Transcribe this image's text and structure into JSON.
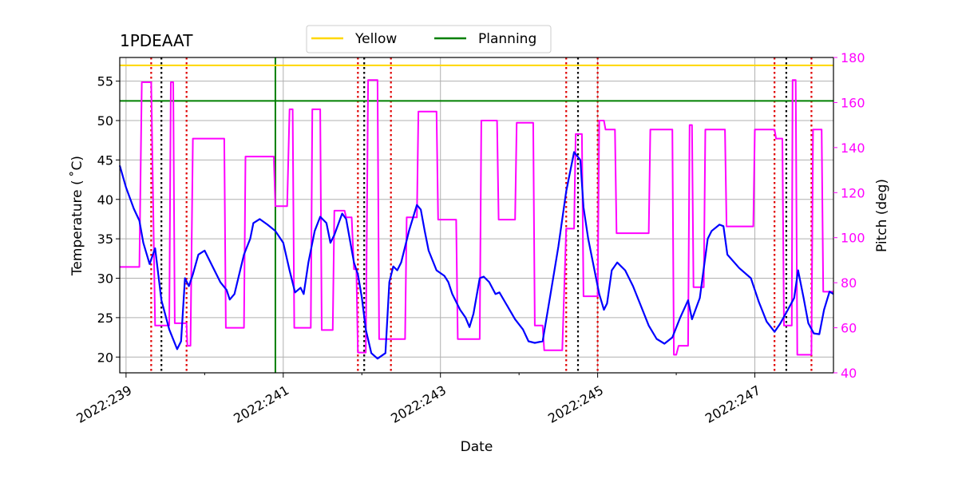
{
  "chart_data": {
    "type": "line",
    "title": "1PDEAAT",
    "xlabel": "Date",
    "ylabel": "Temperature ($^\\circ$C)",
    "ylabel_display": "Temperature ( ˚C)",
    "y2label": "Pitch (deg)",
    "xlim": [
      238.92,
      248.0
    ],
    "ylim": [
      18,
      58
    ],
    "y2lim": [
      40,
      180
    ],
    "x_ticks": [
      {
        "value": 239,
        "label": "2022:239"
      },
      {
        "value": 241,
        "label": "2022:241"
      },
      {
        "value": 243,
        "label": "2022:243"
      },
      {
        "value": 245,
        "label": "2022:245"
      },
      {
        "value": 247,
        "label": "2022:247"
      }
    ],
    "x_minor_ticks": [
      240,
      242,
      244,
      246
    ],
    "y_ticks": [
      20,
      25,
      30,
      35,
      40,
      45,
      50,
      55
    ],
    "y2_ticks": [
      40,
      60,
      80,
      100,
      120,
      140,
      160,
      180
    ],
    "legend": {
      "placement": "top-center",
      "entries": [
        {
          "label": "Yellow",
          "color": "#ffd700"
        },
        {
          "label": "Planning",
          "color": "#008000"
        }
      ]
    },
    "limits": [
      {
        "name": "Yellow",
        "value": 57,
        "color": "#ffd700"
      },
      {
        "name": "Planning",
        "value": 52.5,
        "color": "#008000"
      }
    ],
    "planning_vertical_x": 240.9,
    "comm_black_dotted_x": [
      239.45,
      242.03,
      244.75,
      247.4
    ],
    "red_dotted_x": [
      239.32,
      239.77,
      241.95,
      242.37,
      244.6,
      245.0,
      247.25,
      247.72
    ],
    "series": [
      {
        "name": "1PDEAAT",
        "axis": "left",
        "color": "#0000ff",
        "points": [
          [
            238.92,
            44.3
          ],
          [
            239.0,
            41.5
          ],
          [
            239.1,
            38.8
          ],
          [
            239.17,
            37.3
          ],
          [
            239.22,
            34.5
          ],
          [
            239.3,
            31.8
          ],
          [
            239.37,
            33.8
          ],
          [
            239.45,
            27.2
          ],
          [
            239.55,
            23.5
          ],
          [
            239.65,
            21.0
          ],
          [
            239.7,
            22.0
          ],
          [
            239.75,
            30.0
          ],
          [
            239.8,
            29.0
          ],
          [
            239.85,
            30.5
          ],
          [
            239.92,
            33.0
          ],
          [
            240.0,
            33.5
          ],
          [
            240.1,
            31.5
          ],
          [
            240.2,
            29.5
          ],
          [
            240.28,
            28.5
          ],
          [
            240.32,
            27.3
          ],
          [
            240.38,
            28.0
          ],
          [
            240.5,
            33.0
          ],
          [
            240.58,
            35.0
          ],
          [
            240.62,
            37.0
          ],
          [
            240.7,
            37.5
          ],
          [
            240.8,
            36.8
          ],
          [
            240.9,
            36.0
          ],
          [
            241.0,
            34.5
          ],
          [
            241.08,
            31.0
          ],
          [
            241.15,
            28.2
          ],
          [
            241.22,
            28.8
          ],
          [
            241.26,
            28.0
          ],
          [
            241.32,
            32.0
          ],
          [
            241.4,
            36.0
          ],
          [
            241.47,
            37.8
          ],
          [
            241.55,
            37.0
          ],
          [
            241.6,
            34.5
          ],
          [
            241.65,
            35.5
          ],
          [
            241.75,
            38.2
          ],
          [
            241.8,
            37.5
          ],
          [
            241.9,
            32.0
          ],
          [
            241.95,
            30.5
          ],
          [
            242.0,
            27.5
          ],
          [
            242.05,
            23.5
          ],
          [
            242.12,
            20.5
          ],
          [
            242.2,
            19.8
          ],
          [
            242.3,
            20.5
          ],
          [
            242.35,
            29.5
          ],
          [
            242.4,
            31.5
          ],
          [
            242.45,
            31.0
          ],
          [
            242.5,
            32.0
          ],
          [
            242.6,
            36.0
          ],
          [
            242.7,
            39.3
          ],
          [
            242.75,
            38.7
          ],
          [
            242.8,
            36.0
          ],
          [
            242.85,
            33.5
          ],
          [
            242.95,
            31.0
          ],
          [
            243.05,
            30.3
          ],
          [
            243.1,
            29.5
          ],
          [
            243.15,
            28.0
          ],
          [
            243.25,
            26.0
          ],
          [
            243.32,
            25.0
          ],
          [
            243.37,
            23.8
          ],
          [
            243.42,
            25.5
          ],
          [
            243.5,
            30.0
          ],
          [
            243.55,
            30.2
          ],
          [
            243.62,
            29.5
          ],
          [
            243.7,
            28.0
          ],
          [
            243.75,
            28.2
          ],
          [
            243.85,
            26.5
          ],
          [
            243.95,
            24.8
          ],
          [
            244.05,
            23.5
          ],
          [
            244.12,
            22.0
          ],
          [
            244.2,
            21.8
          ],
          [
            244.3,
            22.0
          ],
          [
            244.4,
            28.0
          ],
          [
            244.5,
            34.0
          ],
          [
            244.6,
            41.0
          ],
          [
            244.7,
            46.0
          ],
          [
            244.78,
            45.0
          ],
          [
            244.82,
            39.0
          ],
          [
            244.88,
            35.0
          ],
          [
            244.95,
            31.5
          ],
          [
            245.02,
            28.0
          ],
          [
            245.08,
            26.0
          ],
          [
            245.12,
            26.8
          ],
          [
            245.18,
            31.0
          ],
          [
            245.25,
            32.0
          ],
          [
            245.35,
            31.0
          ],
          [
            245.45,
            29.0
          ],
          [
            245.55,
            26.5
          ],
          [
            245.65,
            24.0
          ],
          [
            245.75,
            22.3
          ],
          [
            245.85,
            21.7
          ],
          [
            245.95,
            22.5
          ],
          [
            246.05,
            25.0
          ],
          [
            246.15,
            27.2
          ],
          [
            246.2,
            24.8
          ],
          [
            246.3,
            27.5
          ],
          [
            246.4,
            35.0
          ],
          [
            246.45,
            36.0
          ],
          [
            246.55,
            36.8
          ],
          [
            246.6,
            36.6
          ],
          [
            246.65,
            33.0
          ],
          [
            246.8,
            31.3
          ],
          [
            246.95,
            30.0
          ],
          [
            247.05,
            27.0
          ],
          [
            247.15,
            24.5
          ],
          [
            247.25,
            23.2
          ],
          [
            247.32,
            24.2
          ],
          [
            247.42,
            26.0
          ],
          [
            247.5,
            27.5
          ],
          [
            247.55,
            31.0
          ],
          [
            247.62,
            27.5
          ],
          [
            247.68,
            24.3
          ],
          [
            247.75,
            23.0
          ],
          [
            247.82,
            22.9
          ],
          [
            247.88,
            26.0
          ],
          [
            247.95,
            28.3
          ],
          [
            248.0,
            28.0
          ]
        ]
      },
      {
        "name": "Pitch",
        "axis": "right",
        "color": "#ff00ff",
        "points": [
          [
            238.92,
            87
          ],
          [
            239.17,
            87
          ],
          [
            239.2,
            169
          ],
          [
            239.32,
            169
          ],
          [
            239.37,
            61
          ],
          [
            239.55,
            61
          ],
          [
            239.57,
            169
          ],
          [
            239.6,
            169
          ],
          [
            239.62,
            62
          ],
          [
            239.77,
            62
          ],
          [
            239.78,
            52
          ],
          [
            239.82,
            52
          ],
          [
            239.85,
            144
          ],
          [
            240.25,
            144
          ],
          [
            240.27,
            60
          ],
          [
            240.5,
            60
          ],
          [
            240.52,
            136
          ],
          [
            240.88,
            136
          ],
          [
            240.9,
            114
          ],
          [
            241.05,
            114
          ],
          [
            241.08,
            157
          ],
          [
            241.12,
            157
          ],
          [
            241.14,
            60
          ],
          [
            241.35,
            60
          ],
          [
            241.37,
            157
          ],
          [
            241.47,
            157
          ],
          [
            241.49,
            59
          ],
          [
            241.63,
            59
          ],
          [
            241.65,
            112
          ],
          [
            241.78,
            112
          ],
          [
            241.8,
            109
          ],
          [
            241.87,
            109
          ],
          [
            241.9,
            86
          ],
          [
            241.93,
            86
          ],
          [
            241.95,
            49
          ],
          [
            242.05,
            49
          ],
          [
            242.08,
            170
          ],
          [
            242.2,
            170
          ],
          [
            242.22,
            55
          ],
          [
            242.55,
            55
          ],
          [
            242.57,
            109
          ],
          [
            242.7,
            109
          ],
          [
            242.72,
            156
          ],
          [
            242.95,
            156
          ],
          [
            242.97,
            108
          ],
          [
            243.2,
            108
          ],
          [
            243.22,
            55
          ],
          [
            243.5,
            55
          ],
          [
            243.52,
            152
          ],
          [
            243.72,
            152
          ],
          [
            243.74,
            108
          ],
          [
            243.95,
            108
          ],
          [
            243.97,
            151
          ],
          [
            244.18,
            151
          ],
          [
            244.2,
            61
          ],
          [
            244.3,
            61
          ],
          [
            244.32,
            50
          ],
          [
            244.55,
            50
          ],
          [
            244.6,
            104
          ],
          [
            244.7,
            104
          ],
          [
            244.72,
            146
          ],
          [
            244.8,
            146
          ],
          [
            244.82,
            74
          ],
          [
            245.0,
            74
          ],
          [
            245.02,
            152
          ],
          [
            245.08,
            152
          ],
          [
            245.1,
            148
          ],
          [
            245.22,
            148
          ],
          [
            245.24,
            102
          ],
          [
            245.65,
            102
          ],
          [
            245.67,
            148
          ],
          [
            245.95,
            148
          ],
          [
            245.97,
            48
          ],
          [
            246.0,
            48
          ],
          [
            246.03,
            52
          ],
          [
            246.15,
            52
          ],
          [
            246.17,
            150
          ],
          [
            246.2,
            150
          ],
          [
            246.22,
            78
          ],
          [
            246.35,
            78
          ],
          [
            246.37,
            148
          ],
          [
            246.62,
            148
          ],
          [
            246.64,
            105
          ],
          [
            246.98,
            105
          ],
          [
            247.0,
            148
          ],
          [
            247.25,
            148
          ],
          [
            247.27,
            144
          ],
          [
            247.35,
            144
          ],
          [
            247.37,
            61
          ],
          [
            247.47,
            61
          ],
          [
            247.48,
            170
          ],
          [
            247.52,
            170
          ],
          [
            247.54,
            48
          ],
          [
            247.72,
            48
          ],
          [
            247.74,
            148
          ],
          [
            247.85,
            148
          ],
          [
            247.87,
            76
          ],
          [
            248.0,
            76
          ]
        ]
      }
    ]
  }
}
